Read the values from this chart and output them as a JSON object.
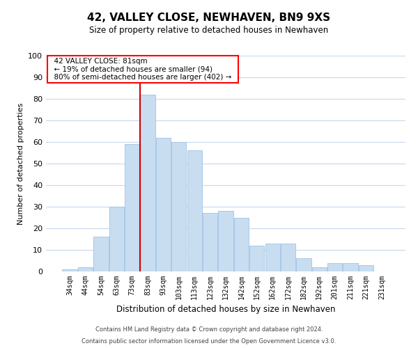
{
  "title": "42, VALLEY CLOSE, NEWHAVEN, BN9 9XS",
  "subtitle": "Size of property relative to detached houses in Newhaven",
  "xlabel": "Distribution of detached houses by size in Newhaven",
  "ylabel": "Number of detached properties",
  "bin_labels": [
    "34sqm",
    "44sqm",
    "54sqm",
    "63sqm",
    "73sqm",
    "83sqm",
    "93sqm",
    "103sqm",
    "113sqm",
    "123sqm",
    "132sqm",
    "142sqm",
    "152sqm",
    "162sqm",
    "172sqm",
    "182sqm",
    "192sqm",
    "201sqm",
    "211sqm",
    "221sqm",
    "231sqm"
  ],
  "bar_heights": [
    1,
    2,
    16,
    30,
    59,
    82,
    62,
    60,
    56,
    27,
    28,
    25,
    12,
    13,
    13,
    6,
    2,
    4,
    4,
    3,
    0
  ],
  "bar_color": "#c8ddf0",
  "bar_edge_color": "#a8c8e8",
  "vline_x_index": 5,
  "vline_color": "#cc0000",
  "annotation_title": "42 VALLEY CLOSE: 81sqm",
  "annotation_line1": "← 19% of detached houses are smaller (94)",
  "annotation_line2": "80% of semi-detached houses are larger (402) →",
  "ylim": [
    0,
    100
  ],
  "footnote1": "Contains HM Land Registry data © Crown copyright and database right 2024.",
  "footnote2": "Contains public sector information licensed under the Open Government Licence v3.0.",
  "bg_color": "#ffffff",
  "grid_color": "#c8d8ec"
}
